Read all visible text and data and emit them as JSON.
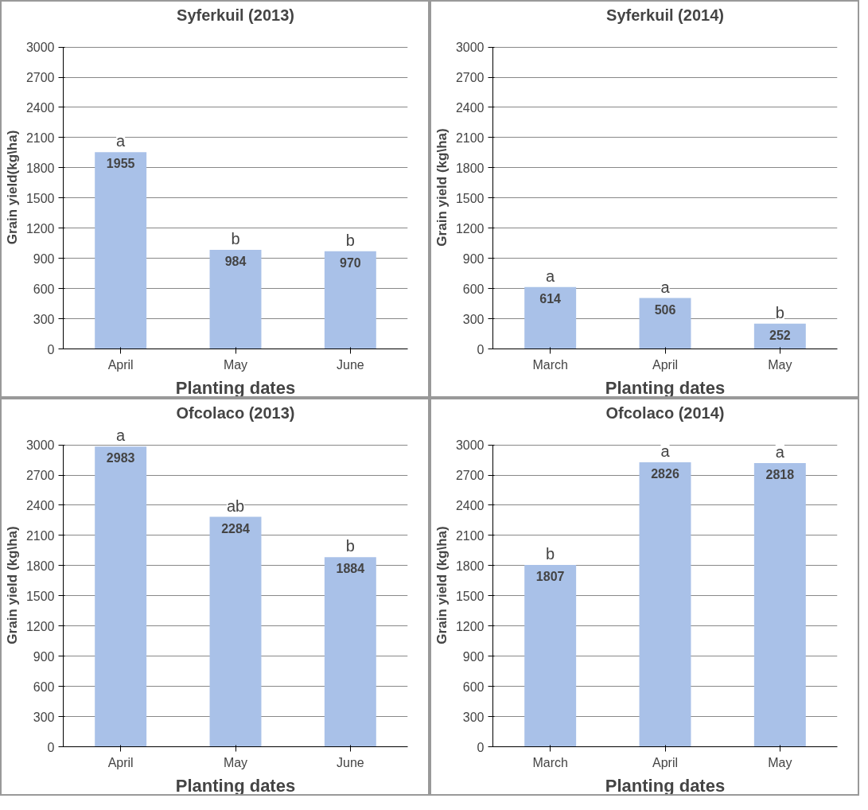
{
  "chart_data": [
    {
      "type": "bar",
      "title": "Syferkuil (2013)",
      "xlabel": "Planting dates",
      "ylabel": "Grain yield(kg\\ha)",
      "categories": [
        "April",
        "May",
        "June"
      ],
      "values": [
        1955,
        984,
        970
      ],
      "color": "#a9c1e8",
      "ylim": [
        0,
        3000
      ],
      "yticks": [
        0,
        300,
        600,
        900,
        1200,
        1500,
        1800,
        2100,
        2400,
        2700,
        3000
      ],
      "grid": "y",
      "data_labels": true,
      "annotations": [
        {
          "text": "a",
          "x": "April",
          "y": 1955
        },
        {
          "text": "b",
          "x": "May",
          "y": 984
        },
        {
          "text": "b",
          "x": "June",
          "y": 970
        }
      ]
    },
    {
      "type": "bar",
      "title": "Syferkuil (2014)",
      "xlabel": "Planting dates",
      "ylabel": "Grain yield (kg\\ha)",
      "categories": [
        "March",
        "April",
        "May"
      ],
      "values": [
        614,
        506,
        252
      ],
      "color": "#a9c1e8",
      "ylim": [
        0,
        3000
      ],
      "yticks": [
        0,
        300,
        600,
        900,
        1200,
        1500,
        1800,
        2100,
        2400,
        2700,
        3000
      ],
      "grid": "y",
      "data_labels": true,
      "annotations": [
        {
          "text": "a",
          "x": "March",
          "y": 614
        },
        {
          "text": "a",
          "x": "April",
          "y": 506
        },
        {
          "text": "b",
          "x": "May",
          "y": 252
        }
      ]
    },
    {
      "type": "bar",
      "title": "Ofcolaco (2013)",
      "xlabel": "Planting dates",
      "ylabel": "Grain yield (kg\\ha)",
      "categories": [
        "April",
        "May",
        "June"
      ],
      "values": [
        2983,
        2284,
        1884
      ],
      "color": "#a9c1e8",
      "ylim": [
        0,
        3000
      ],
      "yticks": [
        0,
        300,
        600,
        900,
        1200,
        1500,
        1800,
        2100,
        2400,
        2700,
        3000
      ],
      "grid": "y",
      "data_labels": true,
      "annotations": [
        {
          "text": "a",
          "x": "April",
          "y": 2983
        },
        {
          "text": "ab",
          "x": "May",
          "y": 2284
        },
        {
          "text": "b",
          "x": "June",
          "y": 1884
        }
      ]
    },
    {
      "type": "bar",
      "title": "Ofcolaco (2014)",
      "xlabel": "Planting dates",
      "ylabel": "Grain yield (kg\\ha)",
      "categories": [
        "March",
        "April",
        "May"
      ],
      "values": [
        1807,
        2826,
        2818
      ],
      "color": "#a9c1e8",
      "ylim": [
        0,
        3000
      ],
      "yticks": [
        0,
        300,
        600,
        900,
        1200,
        1500,
        1800,
        2100,
        2400,
        2700,
        3000
      ],
      "grid": "y",
      "data_labels": true,
      "annotations": [
        {
          "text": "b",
          "x": "March",
          "y": 1807
        },
        {
          "text": "a",
          "x": "April",
          "y": 2826
        },
        {
          "text": "a",
          "x": "May",
          "y": 2818
        }
      ]
    }
  ]
}
